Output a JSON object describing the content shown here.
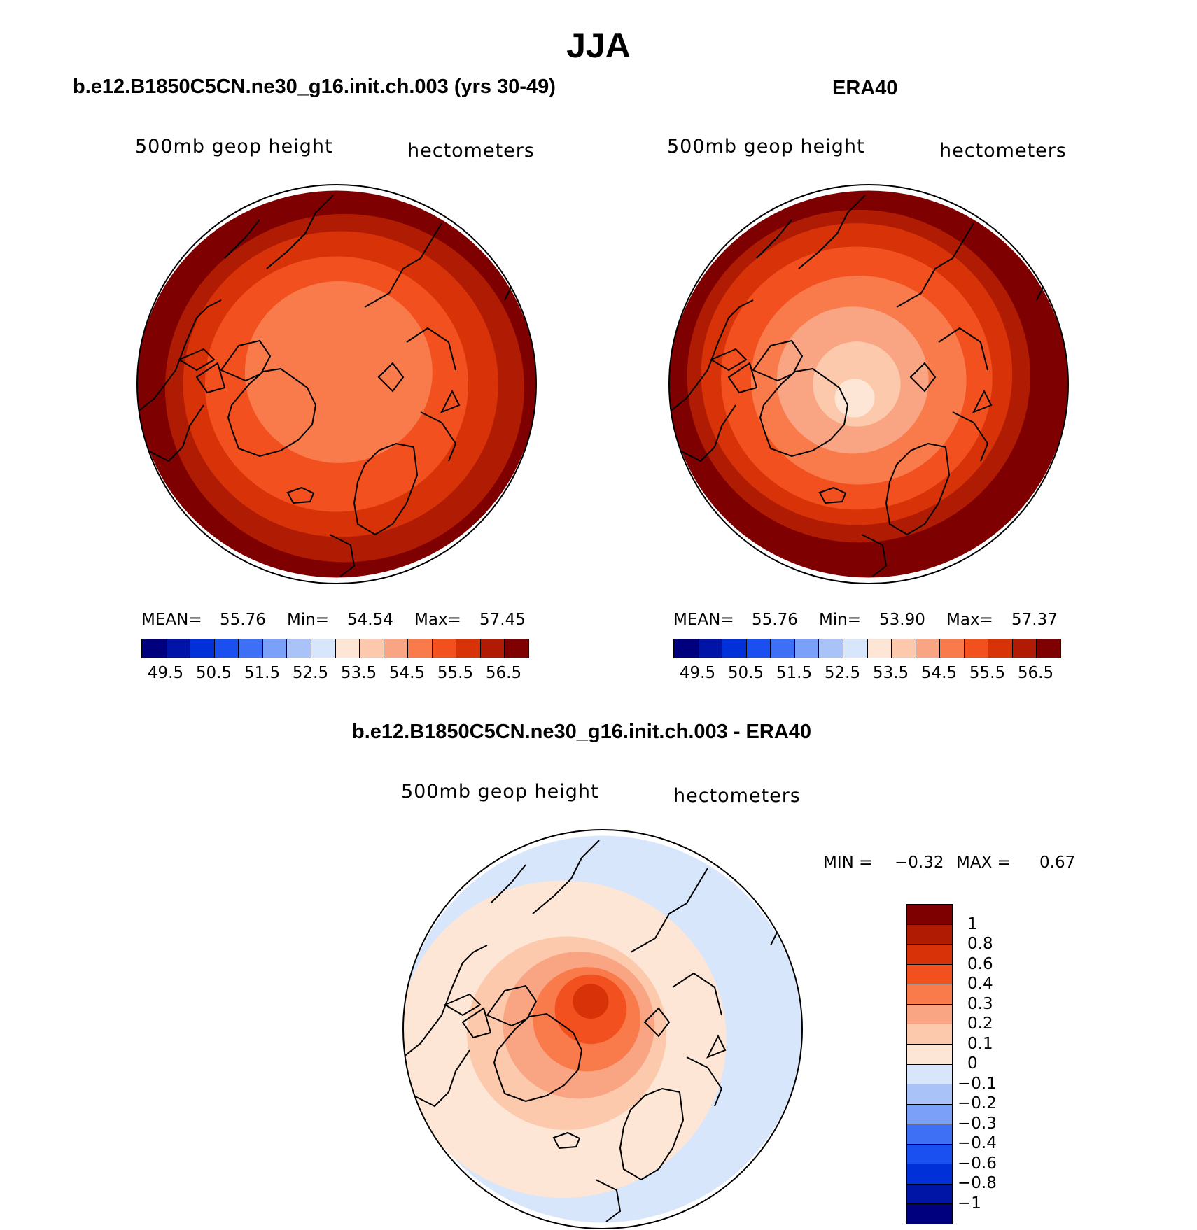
{
  "title": "JJA",
  "panels": [
    {
      "id": "model",
      "title": "b.e12.B1850C5CN.ne30_g16.init.ch.003 (yrs 30-49)",
      "variable": "500mb geop height",
      "units": "hectometers",
      "stats": {
        "mean_label": "MEAN=",
        "mean": "55.76",
        "min_label": "Min=",
        "min": "54.54",
        "max_label": "Max=",
        "max": "57.45"
      }
    },
    {
      "id": "obs",
      "title": "ERA40",
      "variable": "500mb geop height",
      "units": "hectometers",
      "stats": {
        "mean_label": "MEAN=",
        "mean": "55.76",
        "min_label": "Min=",
        "min": "53.90",
        "max_label": "Max=",
        "max": "57.37"
      }
    },
    {
      "id": "diff",
      "title": "b.e12.B1850C5CN.ne30_g16.init.ch.003 - ERA40",
      "variable": "500mb geop height",
      "units": "hectometers",
      "stats": {
        "min_label": "MIN =",
        "min": "−0.32",
        "max_label": "MAX =",
        "max": "0.67"
      }
    }
  ],
  "abs_colorbar": {
    "colors": [
      "#00007f",
      "#0014a5",
      "#0030d8",
      "#1a4ff0",
      "#3d70f5",
      "#7aa0f7",
      "#a9c3f8",
      "#d8e6fb",
      "#fde6d5",
      "#fcc9ac",
      "#f9a583",
      "#f97a4b",
      "#f2501f",
      "#d83308",
      "#b01c03",
      "#7f0000"
    ],
    "labels": [
      "49.5",
      "50.5",
      "51.5",
      "52.5",
      "53.5",
      "54.5",
      "55.5",
      "56.5"
    ]
  },
  "diff_colorbar": {
    "colors": [
      "#7f0000",
      "#b01c03",
      "#d83308",
      "#f2501f",
      "#f97a4b",
      "#f9a583",
      "#fcc9ac",
      "#fde6d5",
      "#d8e6fb",
      "#a9c3f8",
      "#7aa0f7",
      "#3d70f5",
      "#1a4ff0",
      "#0030d8",
      "#0014a5",
      "#00007f"
    ],
    "labels": [
      "1",
      "0.8",
      "0.6",
      "0.4",
      "0.3",
      "0.2",
      "0.1",
      "0",
      "−0.1",
      "−0.2",
      "−0.3",
      "−0.4",
      "−0.6",
      "−0.8",
      "−1"
    ]
  },
  "map_fields": {
    "model": {
      "levels": [
        {
          "color": "#7f0000",
          "center": [
            0,
            0
          ],
          "radius": 1.0
        },
        {
          "color": "#b01c03",
          "center": [
            0.04,
            0.02
          ],
          "radius": 0.9
        },
        {
          "color": "#d83308",
          "center": [
            0.02,
            0.0
          ],
          "radius": 0.79
        },
        {
          "color": "#f2501f",
          "center": [
            0.0,
            0.0
          ],
          "radius": 0.66
        },
        {
          "color": "#f97a4b",
          "center": [
            0.01,
            -0.06
          ],
          "radius": 0.47
        }
      ]
    },
    "obs": {
      "levels": [
        {
          "color": "#7f0000",
          "center": [
            0,
            0
          ],
          "radius": 1.0
        },
        {
          "color": "#b01c03",
          "center": [
            -0.05,
            -0.04
          ],
          "radius": 0.86
        },
        {
          "color": "#d83308",
          "center": [
            -0.06,
            -0.05
          ],
          "radius": 0.78
        },
        {
          "color": "#f2501f",
          "center": [
            -0.06,
            -0.03
          ],
          "radius": 0.68
        },
        {
          "color": "#f97a4b",
          "center": [
            -0.05,
            -0.02
          ],
          "radius": 0.54
        },
        {
          "color": "#f9a583",
          "center": [
            -0.08,
            -0.02
          ],
          "radius": 0.38
        },
        {
          "color": "#fcc9ac",
          "center": [
            -0.06,
            0.0
          ],
          "radius": 0.22
        },
        {
          "color": "#fde6d5",
          "center": [
            -0.07,
            0.07
          ],
          "radius": 0.1
        }
      ]
    },
    "diff": {
      "levels": [
        {
          "color": "#d8e6fb",
          "center": [
            0,
            0
          ],
          "radius": 1.0
        },
        {
          "color": "#fde6d5",
          "center": [
            -0.2,
            0.05
          ],
          "radius": 0.82
        },
        {
          "color": "#fcc9ac",
          "center": [
            -0.18,
            0.02
          ],
          "radius": 0.5
        },
        {
          "color": "#f9a583",
          "center": [
            -0.12,
            -0.02
          ],
          "radius": 0.38
        },
        {
          "color": "#f97a4b",
          "center": [
            -0.08,
            -0.05
          ],
          "radius": 0.27
        },
        {
          "color": "#f2501f",
          "center": [
            -0.06,
            -0.1
          ],
          "radius": 0.18
        },
        {
          "color": "#d83308",
          "center": [
            -0.06,
            -0.14
          ],
          "radius": 0.09
        }
      ]
    }
  }
}
